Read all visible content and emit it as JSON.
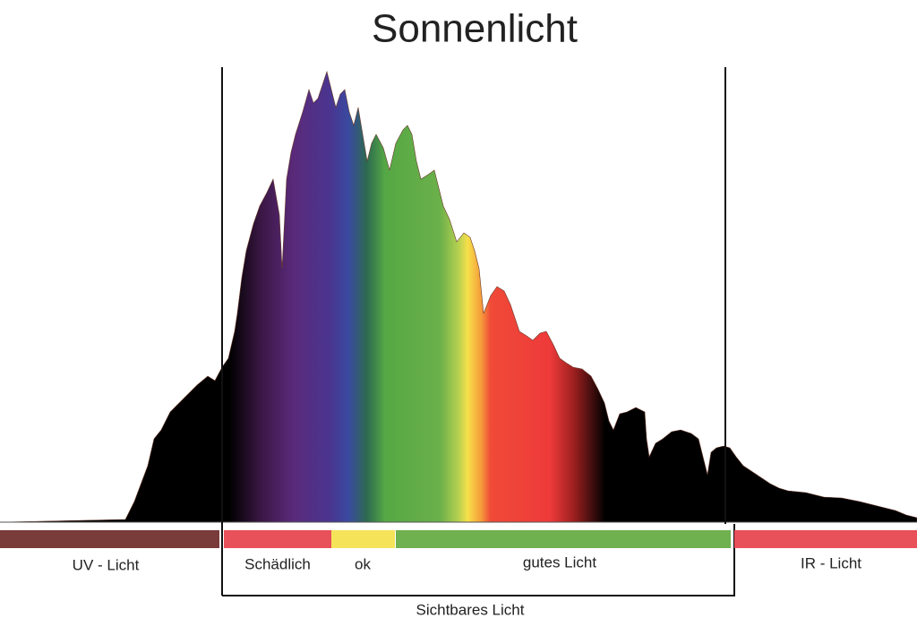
{
  "title": "Sonnenlicht",
  "bands": [
    {
      "label": "UV - Licht"
    },
    {
      "label": "Schädlich"
    },
    {
      "label": "ok"
    },
    {
      "label": "gutes Licht"
    },
    {
      "label": "IR - Licht"
    }
  ],
  "bracket": {
    "label": "Sichtbares Licht"
  }
}
